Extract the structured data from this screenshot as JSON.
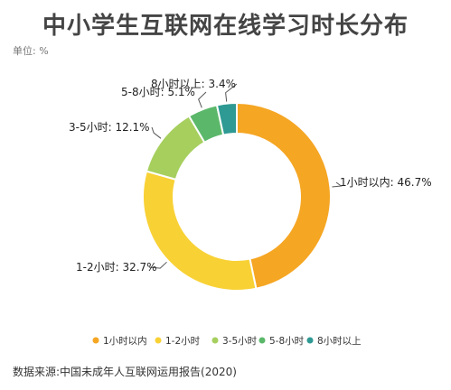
{
  "title": "中小学生互联网在线学习时长分布",
  "unit_label": "单位: %",
  "source": "数据来源:中国未成年人互联网运用报告(2020)",
  "chart_data": {
    "type": "pie",
    "donut": true,
    "title": "中小学生互联网在线学习时长分布",
    "unit": "%",
    "categories": [
      "1小时以内",
      "1-2小时",
      "3-5小时",
      "5-8小时",
      "8小时以上"
    ],
    "values": [
      46.7,
      32.7,
      12.1,
      5.1,
      3.4
    ],
    "data_labels": [
      "1小时以内: 46.7%",
      "1-2小时: 32.7%",
      "3-5小时: 12.1%",
      "5-8小时: 5.1%",
      "8小时以上: 3.4%"
    ],
    "colors": [
      "#F5A623",
      "#F8D135",
      "#A6CF5E",
      "#5BB86A",
      "#2E9A93"
    ],
    "legend_placement": "bottom"
  }
}
